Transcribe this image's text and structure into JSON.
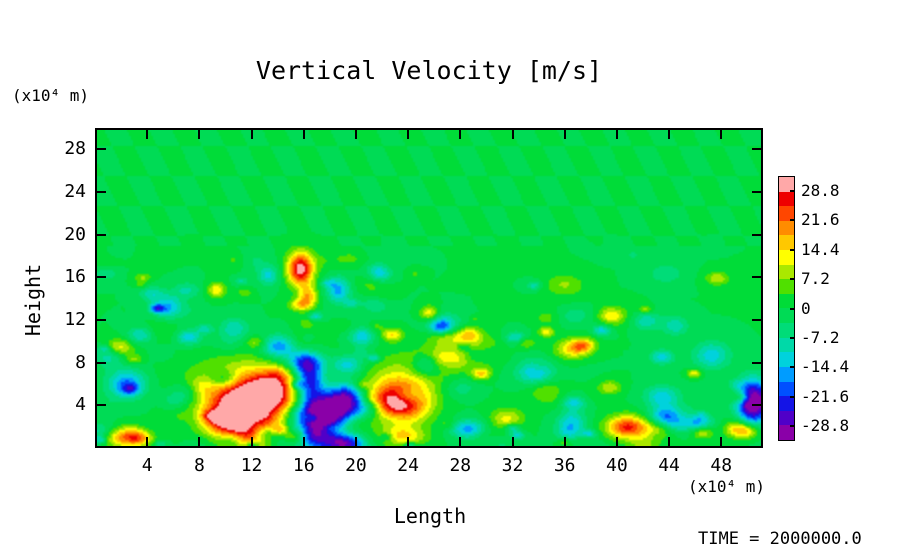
{
  "title": "Vertical Velocity [m/s]",
  "axes": {
    "xlabel": "Length",
    "ylabel": "Height",
    "x_unit": "(x10⁴ m)",
    "y_unit": "(x10⁴ m)"
  },
  "footer": {
    "time_label": "TIME = 2000000.0"
  },
  "chart_data": {
    "type": "heatmap",
    "title": "Vertical Velocity [m/s]",
    "xlabel": "Length (x10⁴ m)",
    "ylabel": "Height (x10⁴ m)",
    "units": "m/s",
    "xlim": [
      0,
      51.2
    ],
    "ylim": [
      0,
      30
    ],
    "xticks": [
      4,
      8,
      12,
      16,
      20,
      24,
      28,
      32,
      36,
      40,
      44,
      48
    ],
    "yticks": [
      4,
      8,
      12,
      16,
      20,
      24,
      28
    ],
    "background_value": 0,
    "colorbar": {
      "range": [
        -32.4,
        32.4
      ],
      "step": 3.6,
      "tick_labels": [
        "28.8",
        "21.6",
        "14.4",
        "7.2",
        "0",
        "-7.2",
        "-14.4",
        "-21.6",
        "-28.8"
      ],
      "palette": [
        "#8a00a8",
        "#5000c8",
        "#1414e6",
        "#0050ff",
        "#009cff",
        "#00d2dc",
        "#00d9a8",
        "#00dc78",
        "#00db55",
        "#00dc38",
        "#50e000",
        "#aae800",
        "#ffff00",
        "#ffc800",
        "#ff8c00",
        "#ff4600",
        "#ee0000",
        "#ffa8a8"
      ]
    },
    "features": [
      {
        "x": 11.7,
        "y": 3.8,
        "rx": 3.0,
        "ry": 2.6,
        "a": 40
      },
      {
        "x": 10.0,
        "y": 2.6,
        "rx": 1.8,
        "ry": 1.4,
        "a": 20
      },
      {
        "x": 13.6,
        "y": 5.6,
        "rx": 1.6,
        "ry": 1.4,
        "a": 16
      },
      {
        "x": 11.8,
        "y": 0.9,
        "rx": 2.2,
        "ry": 1.1,
        "a": 15
      },
      {
        "x": 12.0,
        "y": 6.6,
        "rx": 5.5,
        "ry": 2.4,
        "a": 7
      },
      {
        "x": 17.4,
        "y": 3.0,
        "rx": 2.2,
        "ry": 2.0,
        "a": -42
      },
      {
        "x": 17.5,
        "y": 0.8,
        "rx": 1.8,
        "ry": 1.2,
        "a": -28
      },
      {
        "x": 16.4,
        "y": 6.4,
        "rx": 1.1,
        "ry": 1.8,
        "a": -26
      },
      {
        "x": 19.3,
        "y": 4.6,
        "rx": 1.3,
        "ry": 1.4,
        "a": -22
      },
      {
        "x": 23.3,
        "y": 4.2,
        "rx": 2.2,
        "ry": 1.9,
        "a": 38
      },
      {
        "x": 23.6,
        "y": 0.9,
        "rx": 1.8,
        "ry": 0.9,
        "a": 14
      },
      {
        "x": 24.0,
        "y": 7.0,
        "rx": 4.0,
        "ry": 2.0,
        "a": 7
      },
      {
        "x": 27.6,
        "y": 8.4,
        "rx": 2.6,
        "ry": 1.1,
        "a": 10
      },
      {
        "x": 15.7,
        "y": 16.8,
        "rx": 1.0,
        "ry": 1.6,
        "a": 32
      },
      {
        "x": 16.3,
        "y": 14.2,
        "rx": 0.7,
        "ry": 1.0,
        "a": 16
      },
      {
        "x": 14.0,
        "y": 9.4,
        "rx": 1.3,
        "ry": 1.1,
        "a": -18
      },
      {
        "x": 20.4,
        "y": 10.4,
        "rx": 1.0,
        "ry": 0.9,
        "a": -14
      },
      {
        "x": 18.6,
        "y": 14.8,
        "rx": 0.9,
        "ry": 1.2,
        "a": -16
      },
      {
        "x": 13.2,
        "y": 16.2,
        "rx": 0.8,
        "ry": 0.9,
        "a": -12
      },
      {
        "x": 21.8,
        "y": 16.2,
        "rx": 0.9,
        "ry": 0.9,
        "a": -13
      },
      {
        "x": 2.3,
        "y": 5.9,
        "rx": 1.5,
        "ry": 1.4,
        "a": -18
      },
      {
        "x": 0.9,
        "y": 8.6,
        "rx": 1.0,
        "ry": 1.0,
        "a": -10
      },
      {
        "x": 2.1,
        "y": 0.8,
        "rx": 1.6,
        "ry": 0.9,
        "a": 20
      },
      {
        "x": 7.8,
        "y": 5.4,
        "rx": 1.1,
        "ry": 1.0,
        "a": 10
      },
      {
        "x": 5.5,
        "y": 13.2,
        "rx": 1.1,
        "ry": 1.1,
        "a": -14
      },
      {
        "x": 9.2,
        "y": 14.8,
        "rx": 0.7,
        "ry": 0.7,
        "a": 14
      },
      {
        "x": 10.6,
        "y": 11.2,
        "rx": 1.1,
        "ry": 1.0,
        "a": -10
      },
      {
        "x": 25.6,
        "y": 12.6,
        "rx": 0.7,
        "ry": 0.7,
        "a": 14
      },
      {
        "x": 28.7,
        "y": 1.6,
        "rx": 1.3,
        "ry": 0.9,
        "a": -16
      },
      {
        "x": 31.6,
        "y": 2.6,
        "rx": 1.3,
        "ry": 1.0,
        "a": 12
      },
      {
        "x": 33.8,
        "y": 7.0,
        "rx": 1.4,
        "ry": 1.2,
        "a": -15
      },
      {
        "x": 36.6,
        "y": 2.4,
        "rx": 1.1,
        "ry": 0.9,
        "a": -12
      },
      {
        "x": 39.6,
        "y": 12.4,
        "rx": 0.9,
        "ry": 0.8,
        "a": 12
      },
      {
        "x": 40.9,
        "y": 1.8,
        "rx": 1.6,
        "ry": 1.1,
        "a": 26
      },
      {
        "x": 43.9,
        "y": 2.8,
        "rx": 1.3,
        "ry": 1.0,
        "a": -18
      },
      {
        "x": 44.6,
        "y": 11.4,
        "rx": 1.0,
        "ry": 0.9,
        "a": -10
      },
      {
        "x": 47.4,
        "y": 8.6,
        "rx": 1.4,
        "ry": 1.3,
        "a": -13
      },
      {
        "x": 49.4,
        "y": 1.6,
        "rx": 1.0,
        "ry": 0.8,
        "a": 16
      },
      {
        "x": 50.6,
        "y": 4.2,
        "rx": 1.2,
        "ry": 2.0,
        "a": -38
      }
    ],
    "noise": {
      "seed": 11,
      "count": 180,
      "amplitude": 15,
      "max_height": 19.5,
      "min_radius": 0.4,
      "radius_spread": 1.0
    },
    "waves": {
      "amplitude": 1.4,
      "kx": 1.8,
      "ky": 1.1,
      "start_height": 19
    }
  }
}
